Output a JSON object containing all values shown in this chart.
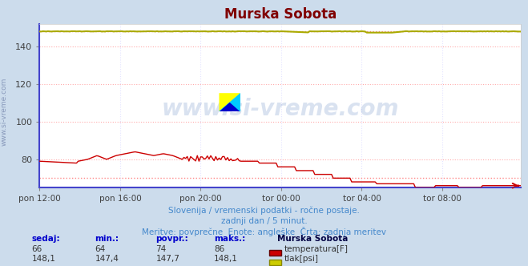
{
  "title": "Murska Sobota",
  "title_color": "#800000",
  "bg_color": "#ccdcec",
  "plot_bg_color": "#ffffff",
  "grid_color": "#ffaaaa",
  "grid_color2": "#ddddff",
  "xlabel_ticks": [
    "pon 12:00",
    "pon 16:00",
    "pon 20:00",
    "tor 00:00",
    "tor 04:00",
    "tor 08:00"
  ],
  "ylim": [
    65,
    152
  ],
  "yticks": [
    80,
    100,
    120,
    140
  ],
  "temp_color": "#cc0000",
  "pressure_color": "#aaaa00",
  "pressure_solid_color": "#888800",
  "blue_line_color": "#4444cc",
  "watermark_color": "#3060b0",
  "watermark_alpha": 0.18,
  "subtitle1": "Slovenija / vremenski podatki - ročne postaje.",
  "subtitle2": "zadnji dan / 5 minut.",
  "subtitle3": "Meritve: povprečne  Enote: angleške  Črta: zadnja meritev",
  "subtitle_color": "#4488cc",
  "label_header_color": "#0000cc",
  "legend_title": "Murska Sobota",
  "legend_title_color": "#000044",
  "label_headers": [
    "sedaj:",
    "min.:",
    "povpr.:",
    "maks.:"
  ],
  "temp_values": [
    "66",
    "64",
    "74",
    "86"
  ],
  "pressure_values": [
    "148,1",
    "147,4",
    "147,7",
    "148,1"
  ],
  "temp_label": "temperatura[F]",
  "pressure_label": "tlak[psi]",
  "temp_box_color": "#cc0000",
  "pressure_box_color": "#cccc00",
  "pressure_box_border": "#888800",
  "ylabel_text": "www.si-vreme.com",
  "ylabel_color": "#8899bb",
  "num_points": 288,
  "dotted_line_color": "#ff8888",
  "left_border_color": "#4444cc",
  "bottom_border_color": "#4444cc"
}
